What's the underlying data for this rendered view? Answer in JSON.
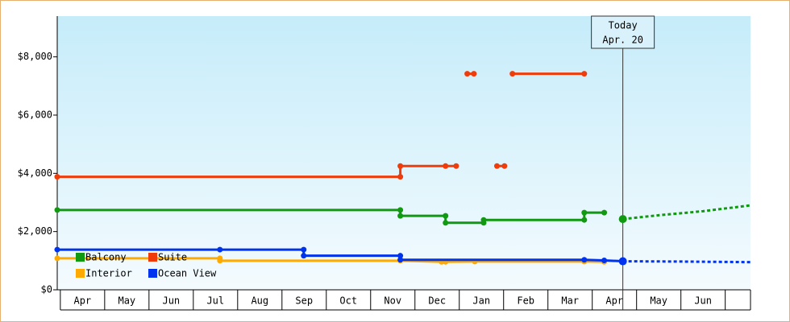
{
  "chart_data": {
    "type": "line",
    "categories": [
      "Apr",
      "May",
      "Jun",
      "Jul",
      "Aug",
      "Sep",
      "Oct",
      "Nov",
      "Dec",
      "Jan",
      "Feb",
      "Mar",
      "Apr",
      "May",
      "Jun",
      null
    ],
    "xlim": [
      -0.07,
      15.57
    ],
    "ylim": [
      0,
      9400
    ],
    "yticks": [
      {
        "value": 0,
        "label": "$0"
      },
      {
        "value": 2000,
        "label": "$2,000"
      },
      {
        "value": 4000,
        "label": "$4,000"
      },
      {
        "value": 6000,
        "label": "$6,000"
      },
      {
        "value": 8000,
        "label": "$8,000"
      }
    ],
    "legend": "lower left",
    "annotation": {
      "label": [
        "Today",
        "Apr. 20"
      ],
      "x": 12.69
    },
    "series": [
      {
        "name": "Balcony",
        "color": "#119911",
        "x": [
          -0.07,
          7.67,
          7.67,
          8.69,
          8.69,
          9.55,
          9.55,
          11.82,
          11.82,
          12.27
        ],
        "values": [
          2740,
          2740,
          2540,
          2540,
          2300,
          2300,
          2400,
          2400,
          2650,
          2650
        ],
        "forecast_x": [
          12.69,
          13.5,
          14.5,
          15.57
        ],
        "forecast_values": [
          2430,
          2560,
          2700,
          2900
        ]
      },
      {
        "name": "Suite",
        "color": "#f03c0a",
        "x": [
          -0.07,
          7.67,
          7.67,
          8.69,
          8.93,
          null,
          9.18,
          9.33,
          null,
          9.85,
          10.02,
          null,
          10.2,
          11.82
        ],
        "values": [
          3880,
          3880,
          4250,
          4250,
          4250,
          null,
          7420,
          7420,
          null,
          4250,
          4250,
          null,
          7420,
          7420
        ]
      },
      {
        "name": "Interior",
        "color": "#ffaa00",
        "x": [
          -0.07,
          3.6,
          3.6,
          7.67,
          8.6,
          8.69,
          9.35,
          11.82,
          12.27
        ],
        "values": [
          1080,
          1080,
          1000,
          1000,
          960,
          960,
          970,
          970,
          960
        ]
      },
      {
        "name": "Ocean View",
        "color": "#0033ee",
        "x": [
          -0.07,
          3.6,
          5.49,
          5.49,
          7.67,
          7.67,
          11.82,
          12.27,
          12.69
        ],
        "values": [
          1380,
          1380,
          1380,
          1170,
          1170,
          1030,
          1030,
          1010,
          980
        ],
        "forecast_x": [
          12.69,
          14.0,
          15.57
        ],
        "forecast_values": [
          980,
          970,
          950
        ]
      }
    ]
  }
}
